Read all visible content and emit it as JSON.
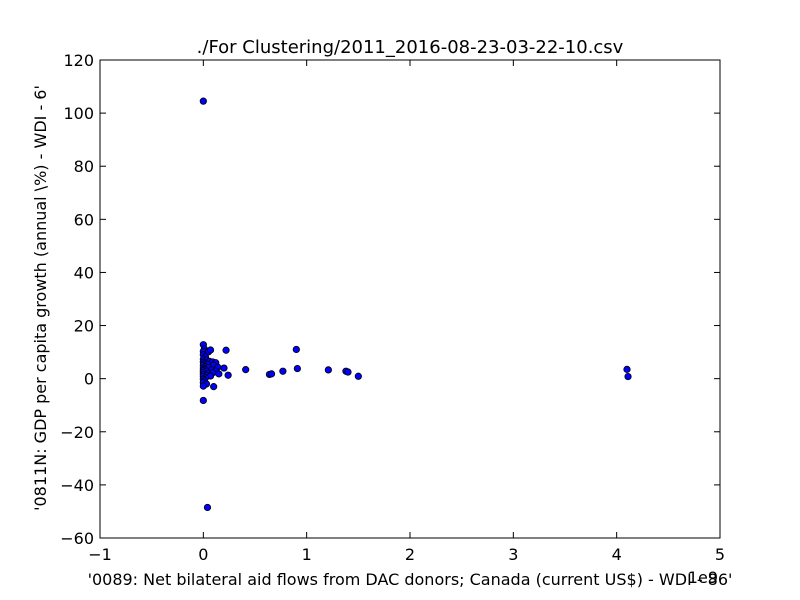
{
  "chart_data": {
    "type": "scatter",
    "title": "./For Clustering/2011_2016-08-23-03-22-10.csv",
    "xlabel": "'0089: Net bilateral aid flows from DAC donors; Canada  (current US$) - WDI - 86'",
    "ylabel": "'0811N: GDP per capita growth  (annual \\%) - WDI - 6'",
    "x_offset_label": "1e9",
    "xlim": [
      -1,
      5
    ],
    "ylim": [
      -60,
      120
    ],
    "x_ticks": [
      "−1",
      "0",
      "1",
      "2",
      "3",
      "4",
      "5"
    ],
    "y_ticks": [
      "−60",
      "−40",
      "−20",
      "0",
      "20",
      "40",
      "60",
      "80",
      "100",
      "120"
    ],
    "marker_color": "#0000ff",
    "grid": false,
    "points": [
      {
        "x": 0.0,
        "y": 104.5
      },
      {
        "x": 0.04,
        "y": -48.5
      },
      {
        "x": 0.0,
        "y": 12.8
      },
      {
        "x": 0.01,
        "y": 11.2
      },
      {
        "x": 0.0,
        "y": 10.3
      },
      {
        "x": 0.05,
        "y": 10.1
      },
      {
        "x": 0.07,
        "y": 10.8
      },
      {
        "x": 0.0,
        "y": 9.0
      },
      {
        "x": 0.02,
        "y": 8.2
      },
      {
        "x": 0.0,
        "y": 7.4
      },
      {
        "x": 0.03,
        "y": 7.0
      },
      {
        "x": 0.06,
        "y": 6.5
      },
      {
        "x": 0.0,
        "y": 6.2
      },
      {
        "x": 0.09,
        "y": 6.3
      },
      {
        "x": 0.12,
        "y": 6.0
      },
      {
        "x": 0.01,
        "y": 5.6
      },
      {
        "x": 0.04,
        "y": 5.4
      },
      {
        "x": 0.0,
        "y": 5.0
      },
      {
        "x": 0.1,
        "y": 5.1
      },
      {
        "x": 0.02,
        "y": 4.5
      },
      {
        "x": 0.05,
        "y": 4.2
      },
      {
        "x": 0.0,
        "y": 4.0
      },
      {
        "x": 0.14,
        "y": 4.3
      },
      {
        "x": 0.2,
        "y": 4.0
      },
      {
        "x": 0.01,
        "y": 3.5
      },
      {
        "x": 0.08,
        "y": 3.3
      },
      {
        "x": 0.0,
        "y": 3.0
      },
      {
        "x": 0.03,
        "y": 2.8
      },
      {
        "x": 0.12,
        "y": 2.9
      },
      {
        "x": 0.0,
        "y": 2.3
      },
      {
        "x": 0.05,
        "y": 2.0
      },
      {
        "x": 0.09,
        "y": 2.2
      },
      {
        "x": 0.15,
        "y": 1.8
      },
      {
        "x": 0.0,
        "y": 1.5
      },
      {
        "x": 0.03,
        "y": 1.2
      },
      {
        "x": 0.07,
        "y": 1.0
      },
      {
        "x": 0.0,
        "y": 0.8
      },
      {
        "x": 0.02,
        "y": 0.3
      },
      {
        "x": 0.0,
        "y": -0.2
      },
      {
        "x": 0.01,
        "y": -0.8
      },
      {
        "x": 0.0,
        "y": -1.5
      },
      {
        "x": 0.03,
        "y": -2.0
      },
      {
        "x": 0.0,
        "y": -2.8
      },
      {
        "x": 0.1,
        "y": -3.0
      },
      {
        "x": 0.0,
        "y": -8.2
      },
      {
        "x": 0.22,
        "y": 10.7
      },
      {
        "x": 0.24,
        "y": 1.3
      },
      {
        "x": 0.41,
        "y": 3.4
      },
      {
        "x": 0.64,
        "y": 1.6
      },
      {
        "x": 0.66,
        "y": 1.8
      },
      {
        "x": 0.77,
        "y": 2.8
      },
      {
        "x": 0.9,
        "y": 11.0
      },
      {
        "x": 0.91,
        "y": 3.8
      },
      {
        "x": 1.21,
        "y": 3.3
      },
      {
        "x": 1.38,
        "y": 2.8
      },
      {
        "x": 1.4,
        "y": 2.5
      },
      {
        "x": 1.5,
        "y": 0.9
      },
      {
        "x": 4.1,
        "y": 3.5
      },
      {
        "x": 4.11,
        "y": 0.8
      }
    ]
  }
}
